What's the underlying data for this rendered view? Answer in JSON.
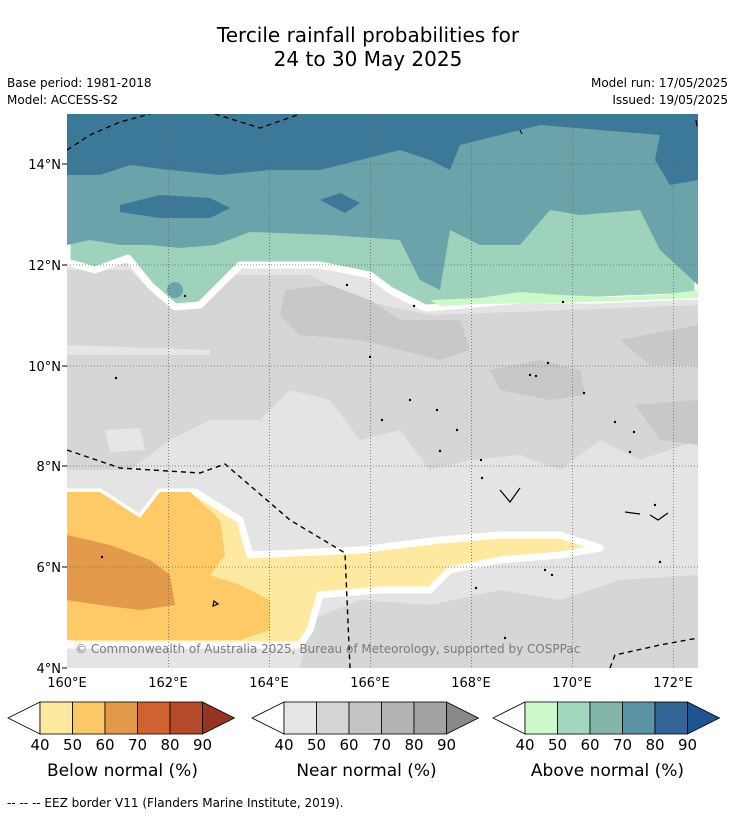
{
  "title": {
    "line1": "Tercile rainfall probabilities for",
    "line2": "24 to 30 May 2025"
  },
  "meta": {
    "base_period": "Base period: 1981-2018",
    "model": "Model: ACCESS-S2",
    "model_run": "Model run: 17/05/2025",
    "issued": "Issued: 19/05/2025"
  },
  "map": {
    "lon_labels": [
      "160°E",
      "162°E",
      "164°E",
      "166°E",
      "168°E",
      "170°E",
      "172°E"
    ],
    "lat_labels": [
      "14°N",
      "12°N",
      "10°N",
      "8°N",
      "6°N",
      "4°N"
    ],
    "lon_range": [
      160,
      172.5
    ],
    "lat_range": [
      4,
      15
    ],
    "copyright": "© Commonwealth of Australia 2025, Bureau of Meteorology, supported by COSPPac"
  },
  "colorbars": [
    {
      "label": "Below normal (%)",
      "ticks": [
        "40",
        "50",
        "60",
        "70",
        "80",
        "90"
      ],
      "colors": [
        "#fdeaa0",
        "#fcc966",
        "#e3994a",
        "#cf6231",
        "#b44a28",
        "#983222"
      ]
    },
    {
      "label": "Near normal (%)",
      "ticks": [
        "40",
        "50",
        "60",
        "70",
        "80",
        "90"
      ],
      "colors": [
        "#e6e6e6",
        "#d5d5d5",
        "#c4c4c4",
        "#b3b3b3",
        "#a2a2a2",
        "#888888"
      ]
    },
    {
      "label": "Above normal (%)",
      "ticks": [
        "40",
        "50",
        "60",
        "70",
        "80",
        "90"
      ],
      "colors": [
        "#ccfacc",
        "#a3d7bd",
        "#83b5aa",
        "#5b94a4",
        "#336596",
        "#1e5591"
      ]
    }
  ],
  "footnote": "--  --  -- EEZ border V11 (Flanders Marine Institute, 2019)."
}
